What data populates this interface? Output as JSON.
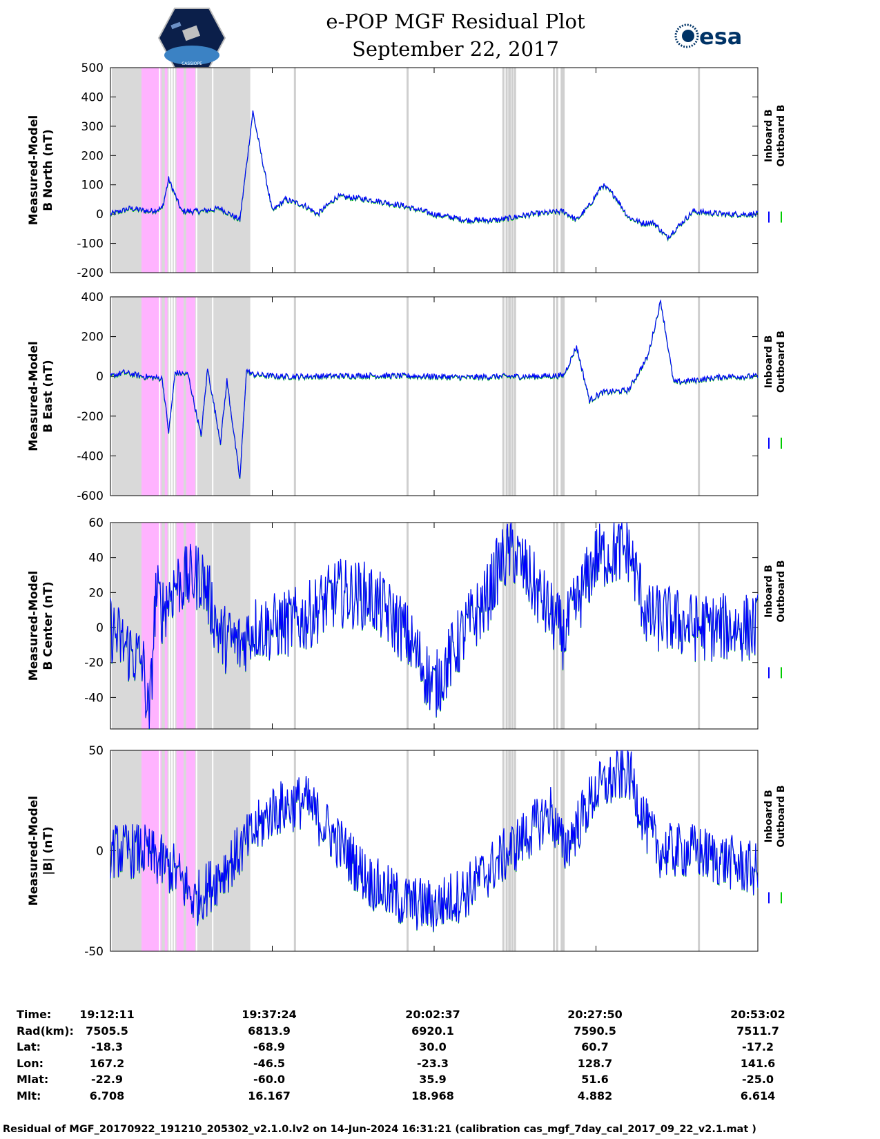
{
  "header": {
    "title": "e-POP MGF Residual Plot",
    "date": "September 22, 2017",
    "left_logo": "CASSIOPE",
    "right_logo": "esa"
  },
  "colors": {
    "inboard": "#0000ff",
    "outboard": "#00cc00",
    "shade_gray": "#d9d9d9",
    "shade_pink": "#ffb3ff"
  },
  "chart_data": [
    {
      "type": "line",
      "ylabel_line1": "Measured-Model",
      "ylabel_line2": "B North (nT)",
      "ylim": [
        -200,
        500
      ],
      "yticks": [
        "500",
        "400",
        "300",
        "200",
        "100",
        "0",
        "-100",
        "-200"
      ],
      "legend": [
        "Inboard B",
        "Outboard B"
      ],
      "series": [
        {
          "name": "Inboard B",
          "x_min": [
            0,
            3,
            6,
            8,
            9,
            11,
            14,
            17,
            20,
            22,
            25,
            27,
            30,
            32,
            35,
            38,
            40,
            45,
            50,
            55,
            60,
            65,
            70,
            72,
            74,
            76,
            78,
            80,
            82,
            84,
            86,
            90,
            95,
            100
          ],
          "y": [
            0,
            20,
            10,
            20,
            120,
            10,
            10,
            20,
            -20,
            350,
            10,
            50,
            30,
            0,
            60,
            55,
            50,
            30,
            0,
            -20,
            -20,
            0,
            10,
            -20,
            30,
            100,
            60,
            -10,
            -30,
            -30,
            -80,
            10,
            0,
            0
          ],
          "noise": 10
        }
      ]
    },
    {
      "type": "line",
      "ylabel_line1": "Measured-Model",
      "ylabel_line2": "B East (nT)",
      "ylim": [
        -600,
        400
      ],
      "yticks": [
        "400",
        "200",
        "0",
        "-200",
        "-400",
        "-600"
      ],
      "legend": [
        "Inboard B",
        "Outboard B"
      ],
      "series": [
        {
          "name": "Inboard B",
          "x_min": [
            0,
            2,
            5,
            8,
            9,
            10,
            12,
            14,
            15,
            17,
            18,
            20,
            21,
            22,
            26,
            30,
            40,
            50,
            55,
            60,
            65,
            70,
            72,
            74,
            76,
            80,
            83,
            85,
            87,
            90,
            95,
            100
          ],
          "y": [
            0,
            20,
            0,
            -10,
            -280,
            20,
            10,
            -300,
            40,
            -330,
            -20,
            -520,
            30,
            10,
            0,
            0,
            5,
            0,
            -5,
            0,
            0,
            5,
            150,
            -120,
            -80,
            -70,
            100,
            380,
            -30,
            -20,
            0,
            0
          ],
          "noise": 15
        }
      ]
    },
    {
      "type": "line",
      "ylabel_line1": "Measured-Model",
      "ylabel_line2": "B Center (nT)",
      "ylim": [
        -58,
        60
      ],
      "yticks": [
        "60",
        "40",
        "20",
        "0",
        "-20",
        "-40"
      ],
      "legend": [
        "Inboard B",
        "Outboard B"
      ],
      "series": [
        {
          "name": "Inboard B",
          "x_min": [
            0,
            2,
            5,
            6,
            7,
            8,
            10,
            14,
            15,
            17,
            20,
            22,
            25,
            30,
            35,
            40,
            45,
            48,
            50,
            55,
            58,
            60,
            62,
            70,
            75,
            80,
            83,
            84,
            86,
            90,
            95,
            100
          ],
          "y": [
            0,
            -10,
            -20,
            -55,
            20,
            10,
            25,
            30,
            20,
            -5,
            -10,
            0,
            0,
            5,
            20,
            18,
            0,
            -20,
            -35,
            0,
            15,
            35,
            45,
            -5,
            40,
            45,
            5,
            5,
            5,
            0,
            0,
            0
          ],
          "noise": 20
        }
      ]
    },
    {
      "type": "line",
      "ylabel_line1": "Measured-Model",
      "ylabel_line2": "|B| (nT)",
      "ylim": [
        -50,
        50
      ],
      "yticks": [
        "50",
        "0",
        "-50"
      ],
      "legend": [
        "Inboard B",
        "Outboard B"
      ],
      "series": [
        {
          "name": "Inboard B",
          "x_min": [
            0,
            5,
            10,
            13,
            16,
            20,
            25,
            30,
            35,
            40,
            45,
            50,
            55,
            60,
            65,
            68,
            70,
            75,
            80,
            83,
            85,
            90,
            95,
            100
          ],
          "y": [
            0,
            0,
            -10,
            -25,
            -15,
            0,
            20,
            25,
            5,
            -15,
            -25,
            -28,
            -20,
            -5,
            10,
            20,
            0,
            30,
            40,
            10,
            0,
            0,
            -5,
            -10
          ],
          "noise": 14
        }
      ]
    }
  ],
  "x_ticks": [
    "19:12:11",
    "19:37:24",
    "20:02:37",
    "20:27:50",
    "20:53:02"
  ],
  "info_table": {
    "rows": [
      {
        "label": "Time:",
        "values": [
          "19:12:11",
          "19:37:24",
          "20:02:37",
          "20:27:50",
          "20:53:02"
        ]
      },
      {
        "label": "Rad(km):",
        "values": [
          "7505.5",
          "6813.9",
          "6920.1",
          "7590.5",
          "7511.7"
        ]
      },
      {
        "label": "Lat:",
        "values": [
          "-18.3",
          "-68.9",
          "30.0",
          "60.7",
          "-17.2"
        ]
      },
      {
        "label": "Lon:",
        "values": [
          "167.2",
          "-46.5",
          "-23.3",
          "128.7",
          "141.6"
        ]
      },
      {
        "label": "Mlat:",
        "values": [
          "-22.9",
          "-60.0",
          "35.9",
          "51.6",
          "-25.0"
        ]
      },
      {
        "label": "Mlt:",
        "values": [
          "6.708",
          "16.167",
          "18.968",
          "4.882",
          "6.614"
        ]
      }
    ]
  },
  "footer": "Residual of MGF_20170922_191210_205302_v2.1.0.lv2 on 14-Jun-2024 16:31:21 (calibration cas_mgf_7day_cal_2017_09_22_v2.1.mat )"
}
